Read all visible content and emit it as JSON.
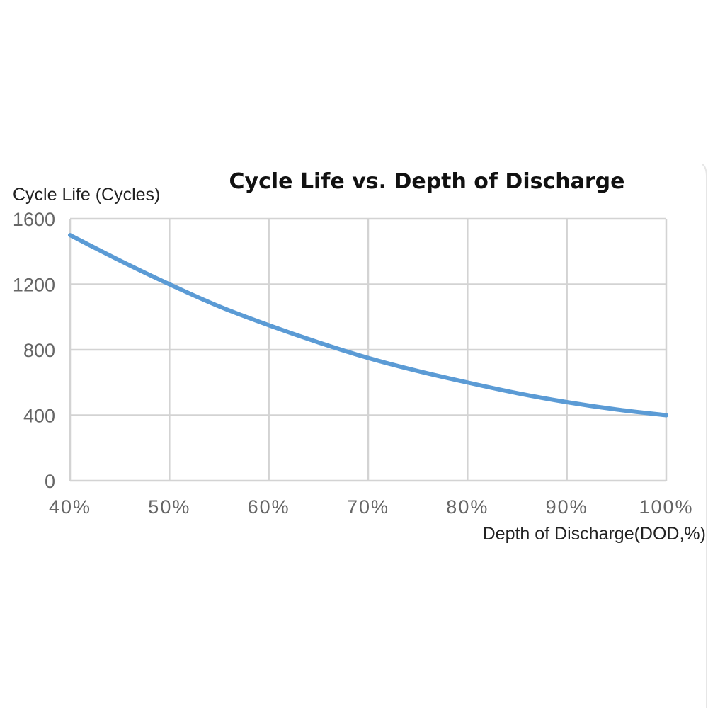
{
  "chart_data": {
    "type": "line",
    "title": "Cycle Life vs. Depth of Discharge",
    "ylabel": "Cycle Life (Cycles)",
    "xlabel": "Depth of Discharge(DOD,%)",
    "xlim": [
      40,
      100
    ],
    "ylim": [
      0,
      1600
    ],
    "x_ticks": [
      "40%",
      "50%",
      "60%",
      "70%",
      "80%",
      "90%",
      "100%"
    ],
    "y_ticks": [
      "0",
      "400",
      "800",
      "1200",
      "1600"
    ],
    "x_tick_values": [
      40,
      50,
      60,
      70,
      80,
      90,
      100
    ],
    "y_tick_values": [
      0,
      400,
      800,
      1200,
      1600
    ],
    "grid": true,
    "series": [
      {
        "color": "#5b9bd5",
        "x": [
          40,
          45,
          50,
          55,
          60,
          65,
          70,
          75,
          80,
          85,
          90,
          95,
          100
        ],
        "y": [
          1500,
          1345,
          1200,
          1065,
          950,
          845,
          750,
          670,
          600,
          535,
          480,
          435,
          400
        ]
      }
    ]
  }
}
